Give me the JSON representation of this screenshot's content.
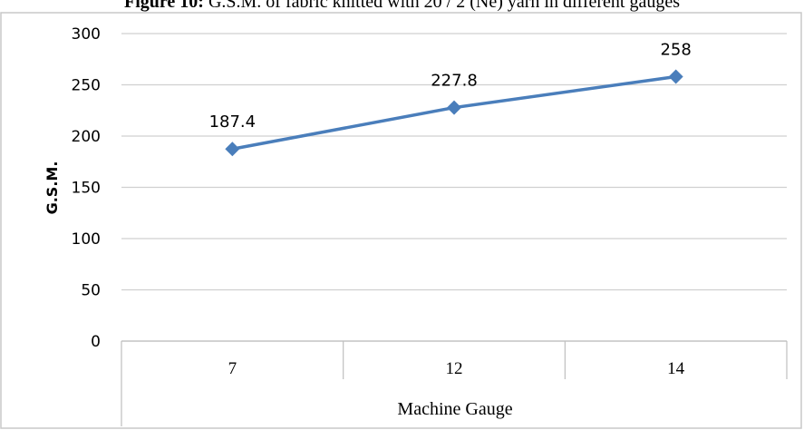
{
  "figure": {
    "caption_bold": "Figure 10:",
    "caption_text": " G.S.M. of fabric knitted with 20 / 2 (Ne) yarn in different gauges"
  },
  "chart_data": {
    "type": "line",
    "categories": [
      "7",
      "12",
      "14"
    ],
    "series": [
      {
        "values": [
          187.4,
          227.8,
          258
        ],
        "labels": [
          "187.4",
          "227.8",
          "258"
        ],
        "color": "#4a7ebb",
        "marker": "diamond"
      }
    ],
    "xlabel": "Machine Gauge",
    "ylabel": "G.S.M.",
    "ylim": [
      0,
      300
    ],
    "yticks": [
      0,
      50,
      100,
      150,
      200,
      250,
      300
    ],
    "grid": true
  }
}
